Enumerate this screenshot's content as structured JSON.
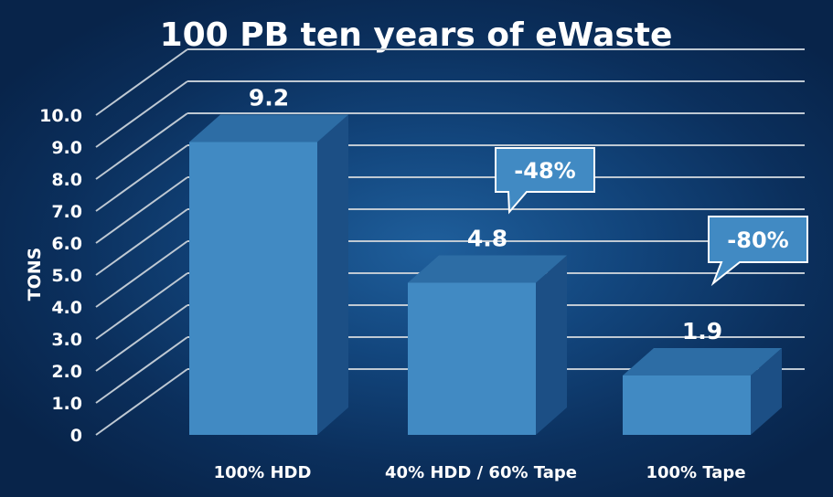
{
  "chart_data": {
    "type": "bar",
    "title": "100 PB ten years of eWaste",
    "ylabel": "TONS",
    "xlabel": "",
    "ylim": [
      0,
      10
    ],
    "yticks": [
      "0",
      "1.0",
      "2.0",
      "3.0",
      "4.0",
      "5.0",
      "6.0",
      "7.0",
      "8.0",
      "9.0",
      "10.0"
    ],
    "categories": [
      "100% HDD",
      "40% HDD / 60% Tape",
      "100% Tape"
    ],
    "values": [
      9.2,
      4.8,
      1.9
    ],
    "value_labels": [
      "9.2",
      "4.8",
      "1.9"
    ],
    "callouts": [
      {
        "category": "40% HDD / 60% Tape",
        "text": "-48%"
      },
      {
        "category": "100% Tape",
        "text": "-80%"
      }
    ],
    "style": "3d",
    "grid": true,
    "colors": {
      "bar_front": "#418ac3",
      "bar_top": "#2d6da5",
      "bar_side": "#1c4f85",
      "grid": "#bfc9d3",
      "callout_fill": "#418ac3",
      "callout_stroke": "#ffffff",
      "text": "#ffffff"
    }
  }
}
